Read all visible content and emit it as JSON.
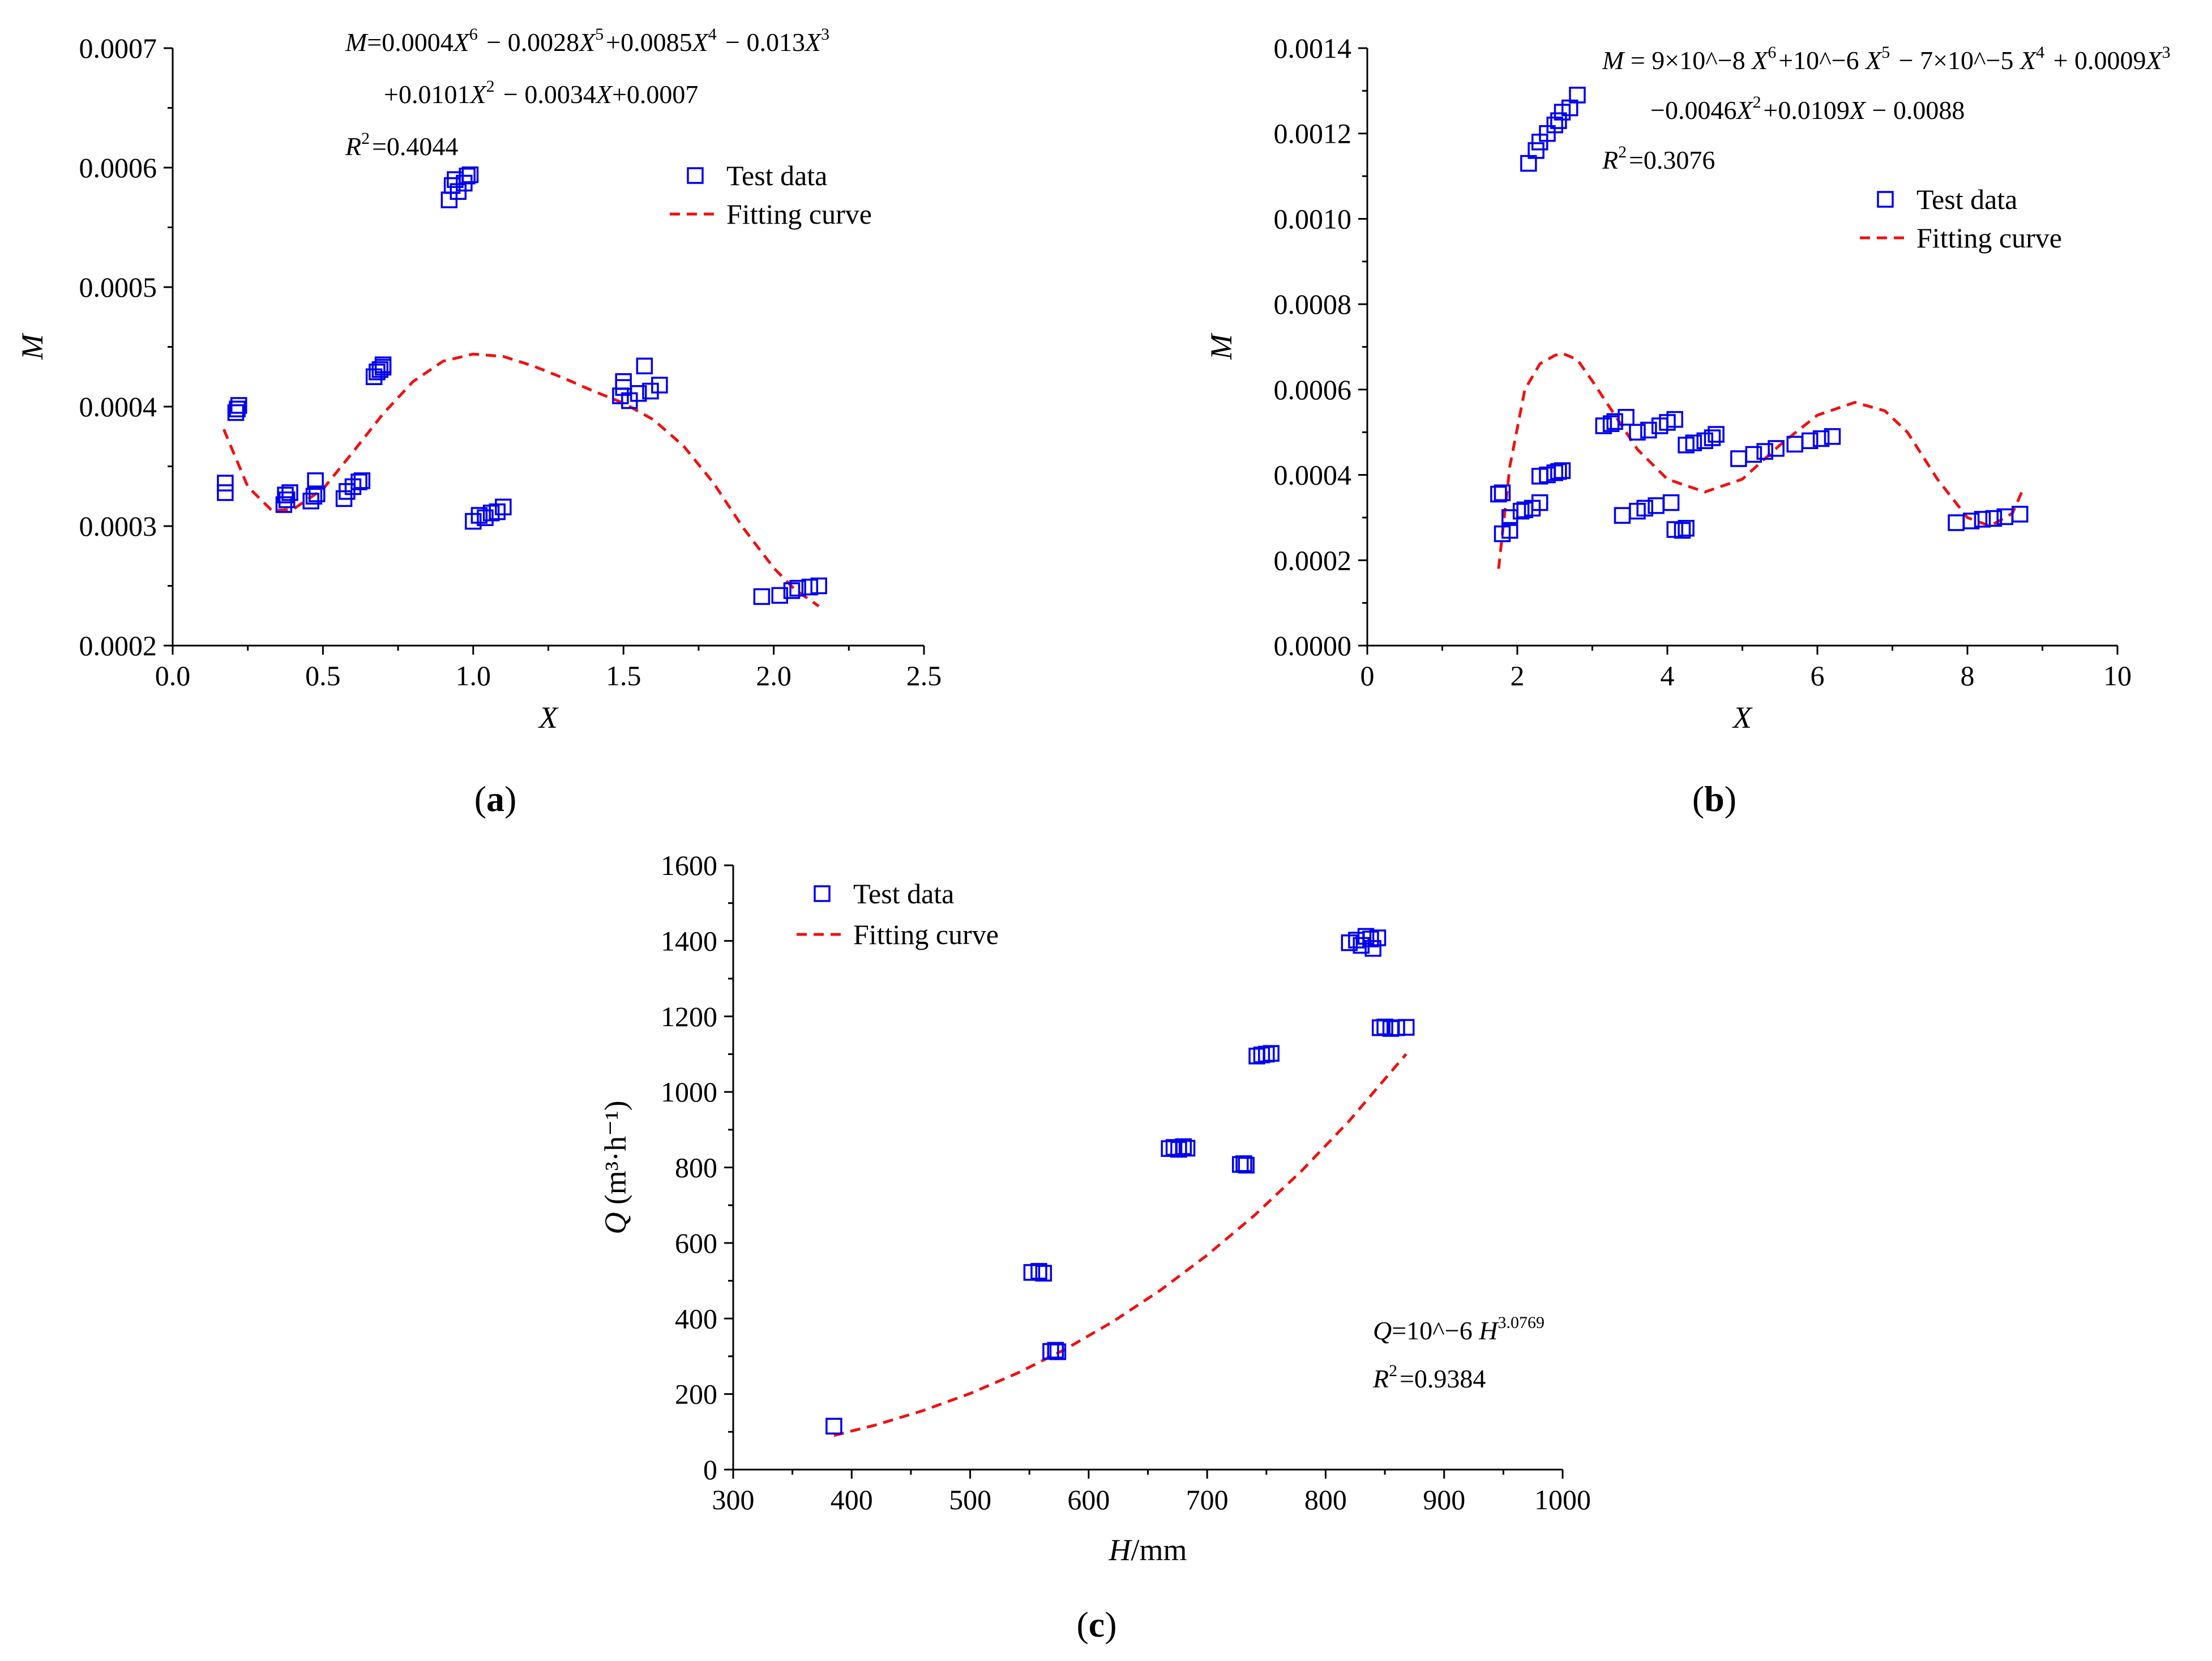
{
  "legend": {
    "test_data": "Test data",
    "fitting_curve": "Fitting curve"
  },
  "colors": {
    "marker": "#0000ee",
    "curve": "#ee1111",
    "axis": "#000000"
  },
  "chart_data": [
    {
      "id": "a",
      "type": "scatter",
      "panel_label": "a",
      "xlabel": "X",
      "ylabel": "M",
      "xlim": [
        0,
        2.5
      ],
      "ylim": [
        0.0002,
        0.0007
      ],
      "xticks": [
        0,
        0.5,
        1,
        1.5,
        2,
        2.5
      ],
      "xtick_labels": [
        "0.0",
        "0.5",
        "1.0",
        "1.5",
        "2.0",
        "2.5"
      ],
      "yticks": [
        0.0002,
        0.0003,
        0.0004,
        0.0005,
        0.0006,
        0.0007
      ],
      "ytick_labels": [
        "0.0002",
        "0.0003",
        "0.0004",
        "0.0005",
        "0.0006",
        "0.0007"
      ],
      "equation_lines": [
        "M=0.0004X^6 − 0.0028X^5+0.0085X^4 − 0.013X^3",
        "+0.0101X^2 − 0.0034X+0.0007",
        "R^2=0.4044"
      ],
      "equation_position": "top-center",
      "legend_position": "top-right",
      "series": [
        {
          "name": "Test data",
          "points": [
            [
              0.175,
              0.000328
            ],
            [
              0.175,
              0.000336
            ],
            [
              0.21,
              0.000395
            ],
            [
              0.22,
              0.000401
            ],
            [
              0.215,
              0.000398
            ],
            [
              0.37,
              0.000318
            ],
            [
              0.375,
              0.000326
            ],
            [
              0.39,
              0.000328
            ],
            [
              0.38,
              0.000322
            ],
            [
              0.46,
              0.000321
            ],
            [
              0.475,
              0.000338
            ],
            [
              0.48,
              0.000327
            ],
            [
              0.47,
              0.000325
            ],
            [
              0.57,
              0.000323
            ],
            [
              0.58,
              0.000329
            ],
            [
              0.6,
              0.000333
            ],
            [
              0.62,
              0.000337
            ],
            [
              0.63,
              0.000338
            ],
            [
              0.67,
              0.000425
            ],
            [
              0.68,
              0.000429
            ],
            [
              0.69,
              0.000431
            ],
            [
              0.7,
              0.000433
            ],
            [
              0.7,
              0.000435
            ],
            [
              0.92,
              0.000573
            ],
            [
              0.93,
              0.000585
            ],
            [
              0.94,
              0.00059
            ],
            [
              0.95,
              0.00058
            ],
            [
              0.97,
              0.000587
            ],
            [
              0.98,
              0.000593
            ],
            [
              0.99,
              0.000594
            ],
            [
              1.0,
              0.000304
            ],
            [
              1.02,
              0.000309
            ],
            [
              1.04,
              0.000307
            ],
            [
              1.06,
              0.000311
            ],
            [
              1.08,
              0.000312
            ],
            [
              1.1,
              0.000316
            ],
            [
              1.49,
              0.000409
            ],
            [
              1.5,
              0.000416
            ],
            [
              1.5,
              0.000421
            ],
            [
              1.52,
              0.000405
            ],
            [
              1.55,
              0.000411
            ],
            [
              1.57,
              0.000434
            ],
            [
              1.59,
              0.000413
            ],
            [
              1.62,
              0.000418
            ],
            [
              1.96,
              0.000241
            ],
            [
              2.02,
              0.000242
            ],
            [
              2.06,
              0.000246
            ],
            [
              2.08,
              0.000248
            ],
            [
              2.12,
              0.000249
            ],
            [
              2.15,
              0.00025
            ]
          ]
        },
        {
          "name": "Fitting curve",
          "style": "dashed",
          "equation": "M=0.0004X^6-0.0028X^5+0.0085X^4-0.013X^3+0.0101X^2-0.0034X+0.0007",
          "x": [
            0.17,
            0.25,
            0.33,
            0.4,
            0.5,
            0.6,
            0.7,
            0.8,
            0.9,
            1.0,
            1.1,
            1.2,
            1.3,
            1.4,
            1.5,
            1.6,
            1.7,
            1.8,
            1.9,
            2.0,
            2.07,
            2.15
          ],
          "y": [
            0.000381,
            0.000333,
            0.000313,
            0.000314,
            0.000331,
            0.000362,
            0.000394,
            0.000421,
            0.000438,
            0.000444,
            0.000442,
            0.000434,
            0.000424,
            0.000413,
            0.000403,
            0.000389,
            0.000367,
            0.000336,
            0.000298,
            0.000265,
            0.000247,
            0.000233
          ]
        }
      ]
    },
    {
      "id": "b",
      "type": "scatter",
      "panel_label": "b",
      "xlabel": "X",
      "ylabel": "M",
      "xlim": [
        0,
        10
      ],
      "ylim": [
        0,
        0.0014
      ],
      "xticks": [
        0,
        2,
        4,
        6,
        8,
        10
      ],
      "xtick_labels": [
        "0",
        "2",
        "4",
        "6",
        "8",
        "10"
      ],
      "yticks": [
        0,
        0.0002,
        0.0004,
        0.0006,
        0.0008,
        0.001,
        0.0012,
        0.0014
      ],
      "ytick_labels": [
        "0.0000",
        "0.0002",
        "0.0004",
        "0.0006",
        "0.0008",
        "0.0010",
        "0.0012",
        "0.0014"
      ],
      "equation_lines": [
        "M = 9×10^−8 X^6+10^−6 X^5 − 7×10^−5 X^4 + 0.0009X^3",
        "−0.0046X^2+0.0109X − 0.0088",
        "R^2=0.3076"
      ],
      "equation_position": "top-right",
      "legend_position": "upper-right",
      "series": [
        {
          "name": "Test data",
          "points": [
            [
              2.15,
              0.00113
            ],
            [
              2.25,
              0.00116
            ],
            [
              2.3,
              0.00118
            ],
            [
              2.4,
              0.0012
            ],
            [
              2.5,
              0.00122
            ],
            [
              2.55,
              0.00123
            ],
            [
              2.6,
              0.00125
            ],
            [
              2.7,
              0.00126
            ],
            [
              2.8,
              0.00129
            ],
            [
              1.75,
              0.000355
            ],
            [
              1.8,
              0.000358
            ],
            [
              1.8,
              0.000262
            ],
            [
              1.9,
              0.00027
            ],
            [
              1.9,
              0.0003
            ],
            [
              2.05,
              0.000315
            ],
            [
              2.1,
              0.000318
            ],
            [
              2.2,
              0.000322
            ],
            [
              2.3,
              0.000335
            ],
            [
              2.3,
              0.000397
            ],
            [
              2.4,
              0.0004
            ],
            [
              2.5,
              0.000405
            ],
            [
              2.55,
              0.000408
            ],
            [
              2.6,
              0.00041
            ],
            [
              3.15,
              0.000515
            ],
            [
              3.25,
              0.00052
            ],
            [
              3.3,
              0.000525
            ],
            [
              3.45,
              0.000535
            ],
            [
              3.4,
              0.000305
            ],
            [
              3.6,
              0.000315
            ],
            [
              3.7,
              0.000322
            ],
            [
              3.85,
              0.000328
            ],
            [
              4.05,
              0.000335
            ],
            [
              3.6,
              0.0005
            ],
            [
              3.75,
              0.000505
            ],
            [
              3.9,
              0.000515
            ],
            [
              4.0,
              0.000523
            ],
            [
              4.1,
              0.00053
            ],
            [
              4.1,
              0.000272
            ],
            [
              4.2,
              0.00027
            ],
            [
              4.25,
              0.000275
            ],
            [
              4.25,
              0.00047
            ],
            [
              4.35,
              0.000475
            ],
            [
              4.5,
              0.00048
            ],
            [
              4.6,
              0.000487
            ],
            [
              4.65,
              0.000495
            ],
            [
              4.95,
              0.000438
            ],
            [
              5.15,
              0.000448
            ],
            [
              5.3,
              0.000455
            ],
            [
              5.45,
              0.000462
            ],
            [
              5.7,
              0.000472
            ],
            [
              5.9,
              0.00048
            ],
            [
              6.05,
              0.000485
            ],
            [
              6.2,
              0.00049
            ],
            [
              7.85,
              0.000288
            ],
            [
              8.05,
              0.000292
            ],
            [
              8.2,
              0.000296
            ],
            [
              8.35,
              0.000298
            ],
            [
              8.5,
              0.000302
            ],
            [
              8.7,
              0.000308
            ]
          ]
        },
        {
          "name": "Fitting curve",
          "style": "dashed",
          "equation": "M=9e-8X^6+1e-6X^5-7e-5X^4+0.0009X^3-0.0046X^2+0.0109X-0.0088",
          "x": [
            1.75,
            1.9,
            2.1,
            2.3,
            2.5,
            2.6,
            2.8,
            3.0,
            3.3,
            3.6,
            4.0,
            4.5,
            5.0,
            5.5,
            6.0,
            6.5,
            6.9,
            7.2,
            7.6,
            8.0,
            8.3,
            8.6,
            8.75
          ],
          "y": [
            0.00018,
            0.00042,
            0.0006,
            0.00066,
            0.00068,
            0.000685,
            0.00067,
            0.00062,
            0.00054,
            0.00046,
            0.00039,
            0.00036,
            0.00039,
            0.00047,
            0.00054,
            0.00057,
            0.00055,
            0.0005,
            0.00039,
            0.0003,
            0.00028,
            0.00031,
            0.00037
          ]
        }
      ]
    },
    {
      "id": "c",
      "type": "scatter",
      "panel_label": "c",
      "xlabel": "H/mm",
      "ylabel": "Q (m³·h⁻¹)",
      "xlim": [
        300,
        1000
      ],
      "ylim": [
        0,
        1600
      ],
      "xticks": [
        300,
        400,
        500,
        600,
        700,
        800,
        900,
        1000
      ],
      "xtick_labels": [
        "300",
        "400",
        "500",
        "600",
        "700",
        "800",
        "900",
        "1000"
      ],
      "yticks": [
        0,
        200,
        400,
        600,
        800,
        1000,
        1200,
        1400,
        1600
      ],
      "ytick_labels": [
        "0",
        "200",
        "400",
        "600",
        "800",
        "1000",
        "1200",
        "1400",
        "1600"
      ],
      "equation_lines": [
        "Q=10^−6 H^3.0769",
        "R^2=0.9384"
      ],
      "equation_position": "lower-right",
      "legend_position": "top-left",
      "series": [
        {
          "name": "Test data",
          "points": [
            [
              385,
              115
            ],
            [
              552,
              522
            ],
            [
              558,
              525
            ],
            [
              562,
              520
            ],
            [
              568,
              313
            ],
            [
              572,
              316
            ],
            [
              574,
              312
            ],
            [
              668,
              850
            ],
            [
              672,
              853
            ],
            [
              676,
              848
            ],
            [
              680,
              855
            ],
            [
              683,
              851
            ],
            [
              728,
              808
            ],
            [
              731,
              810
            ],
            [
              733,
              806
            ],
            [
              742,
              1095
            ],
            [
              746,
              1098
            ],
            [
              750,
              1100
            ],
            [
              754,
              1102
            ],
            [
              820,
              1395
            ],
            [
              826,
              1402
            ],
            [
              830,
              1388
            ],
            [
              834,
              1412
            ],
            [
              838,
              1405
            ],
            [
              840,
              1380
            ],
            [
              844,
              1408
            ],
            [
              846,
              1170
            ],
            [
              850,
              1172
            ],
            [
              855,
              1168
            ],
            [
              860,
              1170
            ],
            [
              868,
              1171
            ]
          ]
        },
        {
          "name": "Fitting curve",
          "style": "dashed",
          "equation": "Q=1e-6*H^3.0769",
          "x": [
            385,
            420,
            460,
            500,
            540,
            580,
            620,
            660,
            700,
            740,
            780,
            820,
            868
          ]
        }
      ]
    }
  ]
}
